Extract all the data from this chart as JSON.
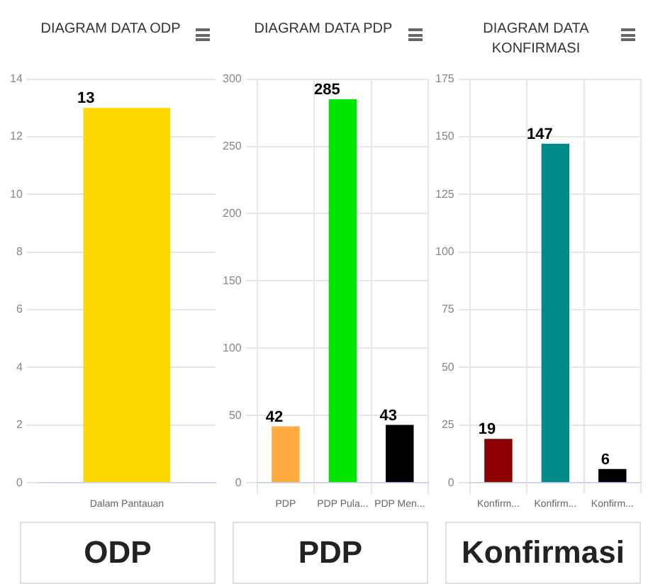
{
  "chart_data": [
    {
      "type": "bar",
      "title": "DIAGRAM DATA ODP",
      "categories": [
        "Dalam Pantauan"
      ],
      "values": [
        13
      ],
      "colors": [
        "#ffd700"
      ],
      "ylim": [
        0,
        14
      ],
      "yticks": [
        0,
        2,
        4,
        6,
        8,
        10,
        12,
        14
      ],
      "grid": "y",
      "data_labels": true,
      "annotations": [
        "ODP"
      ]
    },
    {
      "type": "bar",
      "title": "DIAGRAM DATA PDP",
      "categories": [
        "PDP",
        "PDP Pula...",
        "PDP Men..."
      ],
      "values": [
        42,
        285,
        43
      ],
      "colors": [
        "#ffab40",
        "#00e600",
        "#000000"
      ],
      "ylim": [
        0,
        300
      ],
      "yticks": [
        0,
        50,
        100,
        150,
        200,
        250,
        300
      ],
      "grid": true,
      "data_labels": true,
      "annotations": [
        "PDP"
      ]
    },
    {
      "type": "bar",
      "title": "DIAGRAM DATA KONFIRMASI",
      "categories": [
        "Konfirm...",
        "Konfirm...",
        "Konfirm..."
      ],
      "values": [
        19,
        147,
        6
      ],
      "colors": [
        "#8b0000",
        "#008b8b",
        "#000000"
      ],
      "ylim": [
        0,
        175
      ],
      "yticks": [
        0,
        25,
        50,
        75,
        100,
        125,
        150,
        175
      ],
      "grid": true,
      "data_labels": true,
      "annotations": [
        "Konfirmasi"
      ]
    }
  ]
}
